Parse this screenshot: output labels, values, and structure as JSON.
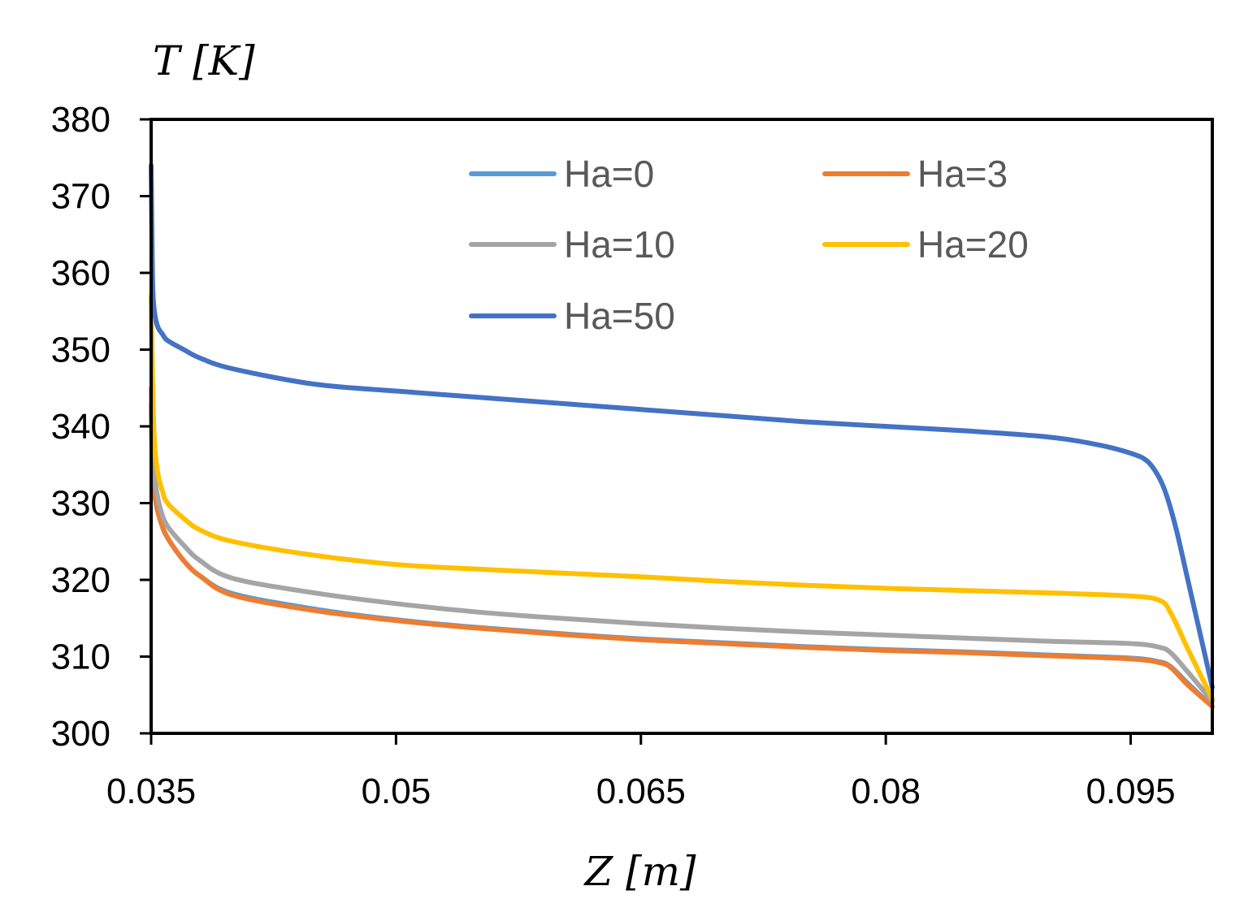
{
  "chart_data": {
    "type": "line",
    "title": "",
    "xlabel": "Z [m]",
    "ylabel": "T [K]",
    "xlim": [
      0.035,
      0.1
    ],
    "ylim": [
      300,
      380
    ],
    "xticks": [
      0.035,
      0.05,
      0.065,
      0.08,
      0.095
    ],
    "xtick_labels": [
      "0.035",
      "0.05",
      "0.065",
      "0.08",
      "0.095"
    ],
    "yticks": [
      300,
      310,
      320,
      330,
      340,
      350,
      360,
      370,
      380
    ],
    "ytick_labels": [
      "300",
      "310",
      "320",
      "330",
      "340",
      "350",
      "360",
      "370",
      "380"
    ],
    "grid": false,
    "legend_position": "top-right",
    "series": [
      {
        "name": "Ha=0",
        "color": "#5B9BD5",
        "x": [
          0.035,
          0.0351,
          0.0353,
          0.0356,
          0.036,
          0.037,
          0.038,
          0.04,
          0.045,
          0.05,
          0.055,
          0.06,
          0.065,
          0.07,
          0.075,
          0.08,
          0.085,
          0.09,
          0.095,
          0.0968,
          0.0975,
          0.0985,
          0.1
        ],
        "y": [
          343,
          334,
          330,
          327.5,
          325.5,
          322.5,
          320.5,
          318.2,
          316.2,
          314.8,
          313.8,
          313.0,
          312.3,
          311.8,
          311.3,
          310.9,
          310.6,
          310.2,
          309.8,
          309.3,
          308.6,
          306.5,
          303.5
        ]
      },
      {
        "name": "Ha=3",
        "color": "#ED7D31",
        "x": [
          0.035,
          0.0351,
          0.0353,
          0.0356,
          0.036,
          0.037,
          0.038,
          0.04,
          0.045,
          0.05,
          0.055,
          0.06,
          0.065,
          0.07,
          0.075,
          0.08,
          0.085,
          0.09,
          0.095,
          0.0968,
          0.0975,
          0.0985,
          0.1
        ],
        "y": [
          343,
          334,
          330,
          327.5,
          325.5,
          322.5,
          320.5,
          318.0,
          316.0,
          314.7,
          313.7,
          312.9,
          312.2,
          311.7,
          311.2,
          310.8,
          310.5,
          310.1,
          309.7,
          309.2,
          308.5,
          306.3,
          303.5
        ]
      },
      {
        "name": "Ha=10",
        "color": "#A5A5A5",
        "x": [
          0.035,
          0.0351,
          0.0353,
          0.0356,
          0.036,
          0.037,
          0.038,
          0.04,
          0.045,
          0.05,
          0.055,
          0.06,
          0.065,
          0.07,
          0.075,
          0.08,
          0.085,
          0.09,
          0.095,
          0.0968,
          0.0975,
          0.0985,
          0.1
        ],
        "y": [
          345,
          336,
          332,
          329,
          327,
          324.5,
          322.5,
          320.2,
          318.3,
          316.9,
          315.8,
          315.0,
          314.3,
          313.7,
          313.2,
          312.8,
          312.4,
          312.0,
          311.7,
          311.2,
          310.4,
          308.0,
          304.2
        ]
      },
      {
        "name": "Ha=20",
        "color": "#FFC000",
        "x": [
          0.035,
          0.0351,
          0.0352,
          0.0354,
          0.0357,
          0.036,
          0.037,
          0.038,
          0.04,
          0.045,
          0.05,
          0.055,
          0.06,
          0.065,
          0.07,
          0.075,
          0.08,
          0.085,
          0.09,
          0.095,
          0.0968,
          0.0975,
          0.0985,
          0.1
        ],
        "y": [
          357,
          345,
          338,
          334,
          331.5,
          330,
          328,
          326.5,
          325,
          323.2,
          322.0,
          321.4,
          320.9,
          320.4,
          319.8,
          319.3,
          318.9,
          318.6,
          318.3,
          317.9,
          317.3,
          315.5,
          311.0,
          304.5
        ]
      },
      {
        "name": "Ha=50",
        "color": "#4472C4",
        "x": [
          0.035,
          0.03505,
          0.0351,
          0.0352,
          0.0354,
          0.0357,
          0.036,
          0.037,
          0.038,
          0.04,
          0.045,
          0.05,
          0.055,
          0.06,
          0.065,
          0.07,
          0.075,
          0.08,
          0.085,
          0.09,
          0.093,
          0.095,
          0.096,
          0.0967,
          0.0972,
          0.0978,
          0.0985,
          0.1
        ],
        "y": [
          374,
          365,
          358,
          355,
          353,
          352,
          351.2,
          350,
          348.9,
          347.5,
          345.5,
          344.6,
          343.8,
          343.0,
          342.2,
          341.4,
          340.6,
          340.0,
          339.4,
          338.6,
          337.6,
          336.5,
          335.5,
          333.5,
          331.0,
          326.5,
          320.0,
          306.0
        ]
      }
    ]
  }
}
